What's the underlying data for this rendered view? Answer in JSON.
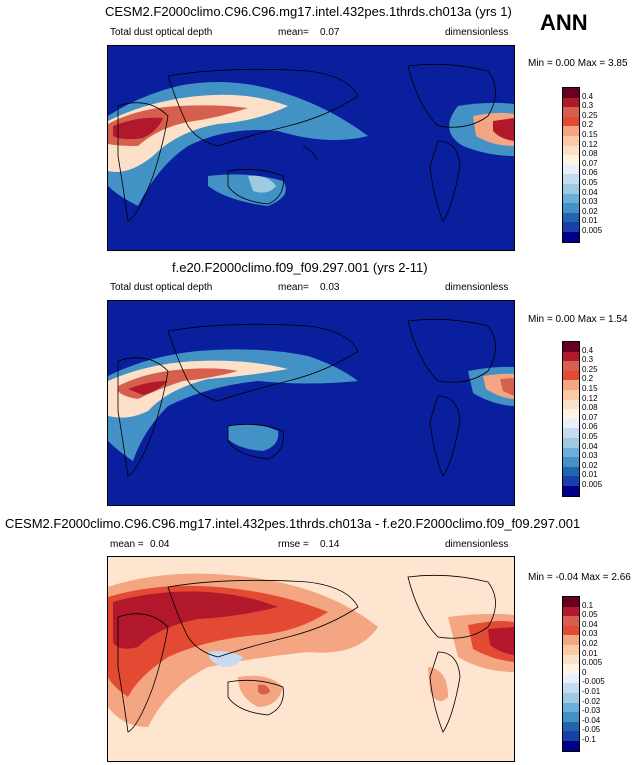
{
  "season": "ANN",
  "panels": [
    {
      "title": "CESM2.F2000climo.C96.C96.mg17.intel.432pes.1thrds.ch013a (yrs 1)",
      "left_label": "Total dust optical depth",
      "mid_label": "mean=",
      "mid_value": "0.07",
      "units": "dimensionless",
      "minmax": "Min =  0.00  Max =  3.85",
      "levels": [
        "0.4",
        "0.3",
        "0.25",
        "0.2",
        "0.15",
        "0.12",
        "0.08",
        "0.07",
        "0.06",
        "0.05",
        "0.04",
        "0.03",
        "0.02",
        "0.01",
        "0.005"
      ]
    },
    {
      "title": "f.e20.F2000climo.f09_f09.297.001 (yrs 2-11)",
      "left_label": "Total dust optical depth",
      "mid_label": "mean=",
      "mid_value": "0.03",
      "units": "dimensionless",
      "minmax": "Min =  0.00  Max =  1.54",
      "levels": [
        "0.4",
        "0.3",
        "0.25",
        "0.2",
        "0.15",
        "0.12",
        "0.08",
        "0.07",
        "0.06",
        "0.05",
        "0.04",
        "0.03",
        "0.02",
        "0.01",
        "0.005"
      ]
    },
    {
      "title": "CESM2.F2000climo.C96.C96.mg17.intel.432pes.1thrds.ch013a - f.e20.F2000climo.f09_f09.297.001",
      "left_label": "mean =",
      "left_value": "0.04",
      "mid_label": "rmse =",
      "mid_value": "0.14",
      "units": "dimensionless",
      "minmax": "Min =  -0.04  Max =  2.66",
      "levels": [
        "0.1",
        "0.05",
        "0.04",
        "0.03",
        "0.02",
        "0.01",
        "0.005",
        "0",
        "-0.005",
        "-0.01",
        "-0.02",
        "-0.03",
        "-0.04",
        "-0.05",
        "-0.1"
      ]
    }
  ],
  "colors": {
    "seq": [
      "#67001f",
      "#b2182b",
      "#d6604d",
      "#e34a33",
      "#f4a582",
      "#fbc8a8",
      "#fde0c8",
      "#fff3e6",
      "#e8f0fb",
      "#c6dbef",
      "#9ecae1",
      "#6baed6",
      "#4292c6",
      "#2166ac",
      "#1a3fa8",
      "#00008b"
    ],
    "diff": [
      "#67001f",
      "#b2182b",
      "#d6604d",
      "#e34a33",
      "#f4a582",
      "#fbc8a8",
      "#fde0c8",
      "#fff3e6",
      "#e8f0fb",
      "#c6dbef",
      "#9ecae1",
      "#6baed6",
      "#4292c6",
      "#2166ac",
      "#1a3fa8",
      "#00008b"
    ],
    "ocean_low": "#0a1f9e",
    "diff_bg": "#fde5d0"
  }
}
